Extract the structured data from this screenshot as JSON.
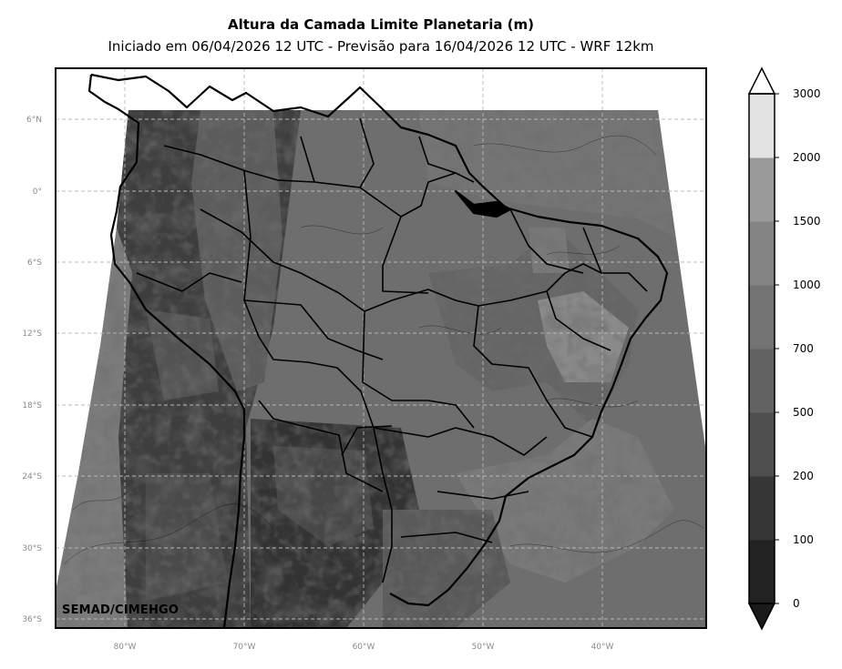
{
  "title": "Altura da Camada Limite Planetaria (m)",
  "subtitle": "Iniciado em 06/04/2026 12 UTC - Previsão para 16/04/2026 12 UTC - WRF 12km",
  "credit": "SEMAD/CIMEHGO",
  "lat_ticks": [
    "6°N",
    "0°",
    "6°S",
    "12°S",
    "18°S",
    "24°S",
    "30°S",
    "36°S"
  ],
  "lon_ticks": [
    "80°W",
    "70°W",
    "60°W",
    "50°W",
    "40°W"
  ],
  "colorbar": {
    "labels": [
      "0",
      "100",
      "200",
      "500",
      "700",
      "1000",
      "1500",
      "2000",
      "3000"
    ],
    "colors": [
      "#222222",
      "#363636",
      "#4e4e4e",
      "#626262",
      "#737373",
      "#848484",
      "#9a9a9a",
      "#b2b2b2",
      "#e3e3e3"
    ],
    "extend_low_color": "#1a1a1a",
    "extend_high_color": "#ffffff"
  }
}
